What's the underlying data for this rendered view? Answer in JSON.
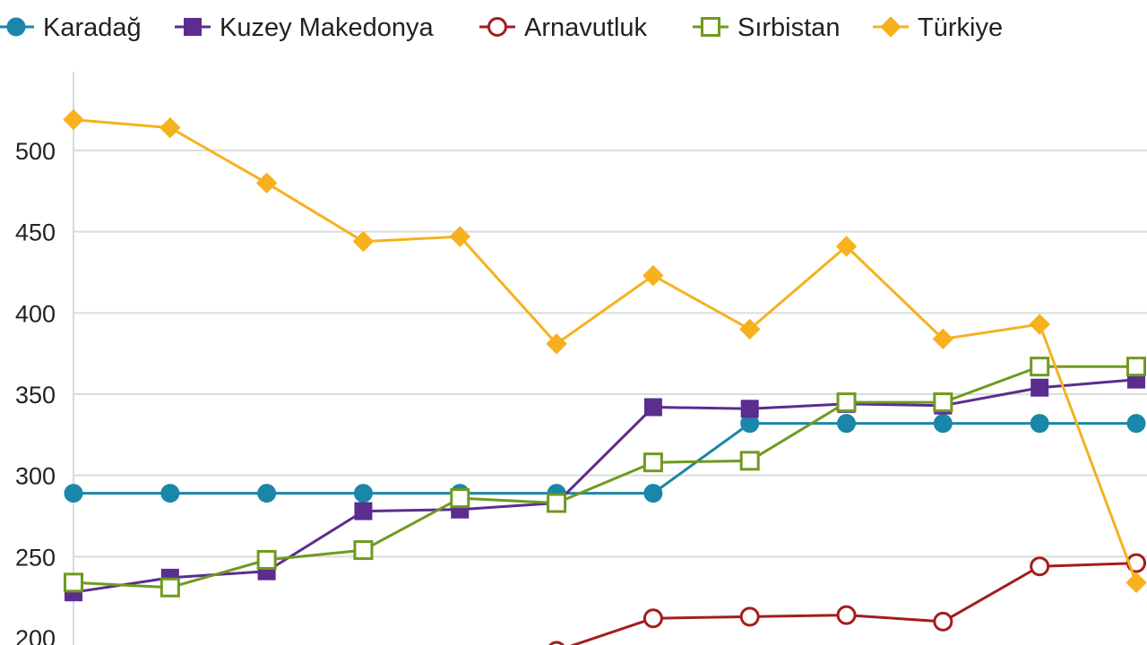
{
  "chart_data": {
    "type": "line",
    "title": "",
    "xlabel": "",
    "ylabel": "",
    "x": [
      1,
      2,
      3,
      4,
      5,
      6,
      7,
      8,
      9,
      10,
      11,
      12
    ],
    "ylim": [
      200,
      540
    ],
    "yticks": [
      200,
      250,
      300,
      350,
      400,
      450,
      500
    ],
    "grid": true,
    "legend": "top",
    "series": [
      {
        "name": "Karadağ",
        "color": "#1a87a8",
        "marker": "circle",
        "filled": true,
        "values": [
          289,
          289,
          289,
          289,
          289,
          289,
          289,
          332,
          332,
          332,
          332,
          332
        ]
      },
      {
        "name": "Kuzey Makedonya",
        "color": "#5b2d8e",
        "marker": "square",
        "filled": true,
        "values": [
          228,
          237,
          241,
          278,
          279,
          283,
          342,
          341,
          344,
          343,
          354,
          359
        ]
      },
      {
        "name": "Arnavutluk",
        "color": "#a31d1d",
        "marker": "circle",
        "filled": false,
        "values": [
          null,
          null,
          null,
          null,
          null,
          192,
          212,
          213,
          214,
          210,
          244,
          246
        ]
      },
      {
        "name": "Sırbistan",
        "color": "#6e9a1f",
        "marker": "square",
        "filled": false,
        "values": [
          234,
          231,
          248,
          254,
          286,
          283,
          308,
          309,
          345,
          345,
          367,
          367
        ]
      },
      {
        "name": "Türkiye",
        "color": "#f5b21e",
        "marker": "diamond",
        "filled": true,
        "values": [
          519,
          514,
          480,
          444,
          447,
          381,
          423,
          390,
          441,
          384,
          393,
          234
        ]
      }
    ]
  }
}
